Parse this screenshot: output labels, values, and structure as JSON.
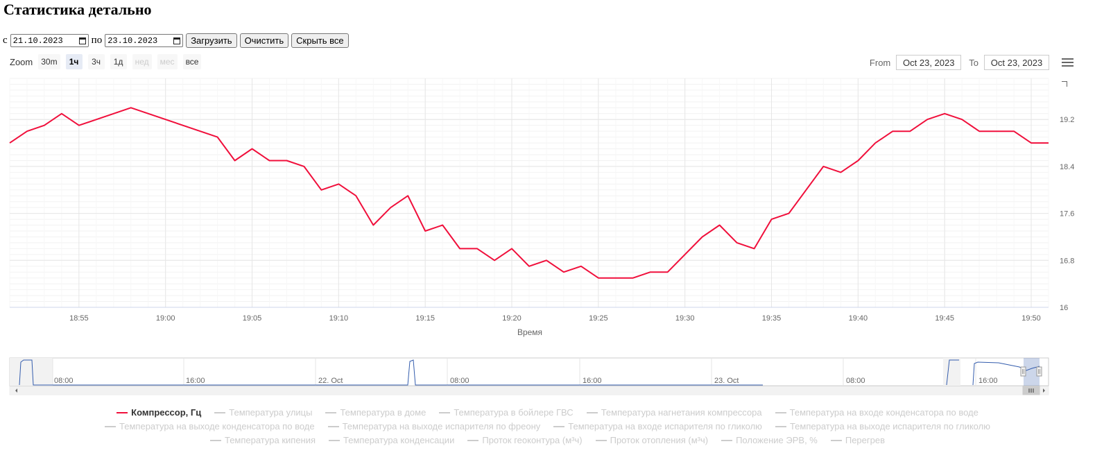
{
  "page": {
    "title": "Статистика детально"
  },
  "controls": {
    "from_label": "с",
    "from_value": "21.10.2023",
    "to_label": "по",
    "to_value": "23.10.2023",
    "load_label": "Загрузить",
    "clear_label": "Очистить",
    "hide_all_label": "Скрыть все"
  },
  "zoom": {
    "label": "Zoom",
    "buttons": [
      {
        "label": "30m",
        "state": "normal"
      },
      {
        "label": "1ч",
        "state": "selected"
      },
      {
        "label": "3ч",
        "state": "normal"
      },
      {
        "label": "1д",
        "state": "normal"
      },
      {
        "label": "нед",
        "state": "disabled"
      },
      {
        "label": "мес",
        "state": "disabled"
      },
      {
        "label": "все",
        "state": "normal"
      }
    ]
  },
  "range": {
    "from_label": "From",
    "from_value": "Oct 23, 2023",
    "to_label": "To",
    "to_value": "Oct 23, 2023"
  },
  "chart_data": {
    "type": "line",
    "title": "",
    "xlabel": "Время",
    "ylabel": "",
    "xlim": [
      "18:51",
      "19:51"
    ],
    "ylim": [
      16,
      19.9
    ],
    "y_ticks": [
      16,
      16.8,
      17.6,
      18.4,
      19.2
    ],
    "x_ticks": [
      "18:55",
      "19:00",
      "19:05",
      "19:10",
      "19:15",
      "19:20",
      "19:25",
      "19:30",
      "19:35",
      "19:40",
      "19:45",
      "19:50"
    ],
    "grid": true,
    "legend_position": "bottom",
    "color": "#f00f3b",
    "series": [
      {
        "name": "Компрессор, Гц",
        "points": [
          [
            "18:51",
            18.8
          ],
          [
            "18:52",
            19.0
          ],
          [
            "18:53",
            19.1
          ],
          [
            "18:54",
            19.3
          ],
          [
            "18:55",
            19.1
          ],
          [
            "18:58",
            19.4
          ],
          [
            "19:03",
            18.9
          ],
          [
            "19:04",
            18.5
          ],
          [
            "19:05",
            18.7
          ],
          [
            "19:06",
            18.5
          ],
          [
            "19:07",
            18.5
          ],
          [
            "19:08",
            18.4
          ],
          [
            "19:09",
            18.0
          ],
          [
            "19:10",
            18.1
          ],
          [
            "19:11",
            17.9
          ],
          [
            "19:12",
            17.4
          ],
          [
            "19:13",
            17.7
          ],
          [
            "19:14",
            17.9
          ],
          [
            "19:15",
            17.3
          ],
          [
            "19:16",
            17.4
          ],
          [
            "19:17",
            17.0
          ],
          [
            "19:18",
            17.0
          ],
          [
            "19:19",
            16.8
          ],
          [
            "19:20",
            17.0
          ],
          [
            "19:21",
            16.7
          ],
          [
            "19:22",
            16.8
          ],
          [
            "19:23",
            16.6
          ],
          [
            "19:24",
            16.7
          ],
          [
            "19:25",
            16.5
          ],
          [
            "19:27",
            16.5
          ],
          [
            "19:28",
            16.6
          ],
          [
            "19:29",
            16.6
          ],
          [
            "19:31",
            17.2
          ],
          [
            "19:32",
            17.4
          ],
          [
            "19:33",
            17.1
          ],
          [
            "19:34",
            17.0
          ],
          [
            "19:35",
            17.5
          ],
          [
            "19:36",
            17.6
          ],
          [
            "19:38",
            18.4
          ],
          [
            "19:39",
            18.3
          ],
          [
            "19:40",
            18.5
          ],
          [
            "19:41",
            18.8
          ],
          [
            "19:42",
            19.0
          ],
          [
            "19:43",
            19.0
          ],
          [
            "19:44",
            19.2
          ],
          [
            "19:45",
            19.3
          ],
          [
            "19:46",
            19.2
          ],
          [
            "19:47",
            19.0
          ],
          [
            "19:49",
            19.0
          ],
          [
            "19:50",
            18.8
          ],
          [
            "19:51",
            18.8
          ]
        ]
      }
    ]
  },
  "navigator": {
    "labels": [
      "08:00",
      "16:00",
      "22. Oct",
      "08:00",
      "16:00",
      "23. Oct",
      "08:00",
      "16:00"
    ]
  },
  "legend": {
    "items": [
      {
        "label": "Компрессор, Гц",
        "active": true
      },
      {
        "label": "Температура улицы",
        "active": false
      },
      {
        "label": "Температура в доме",
        "active": false
      },
      {
        "label": "Температура в бойлере ГВС",
        "active": false
      },
      {
        "label": "Температура нагнетания компрессора",
        "active": false
      },
      {
        "label": "Температура на входе конденсатора по воде",
        "active": false
      },
      {
        "label": "Температура на выходе конденсатора по воде",
        "active": false
      },
      {
        "label": "Температура на выходе испарителя по фреону",
        "active": false
      },
      {
        "label": "Температура на входе испарителя по гликолю",
        "active": false
      },
      {
        "label": "Температура на выходе испарителя по гликолю",
        "active": false
      },
      {
        "label": "Температура кипения",
        "active": false
      },
      {
        "label": "Температура конденсации",
        "active": false
      },
      {
        "label": "Проток геоконтура (м³ч)",
        "active": false
      },
      {
        "label": "Проток отопления (м³ч)",
        "active": false
      },
      {
        "label": "Положение ЭРВ, %",
        "active": false
      },
      {
        "label": "Перегрев",
        "active": false
      }
    ]
  }
}
